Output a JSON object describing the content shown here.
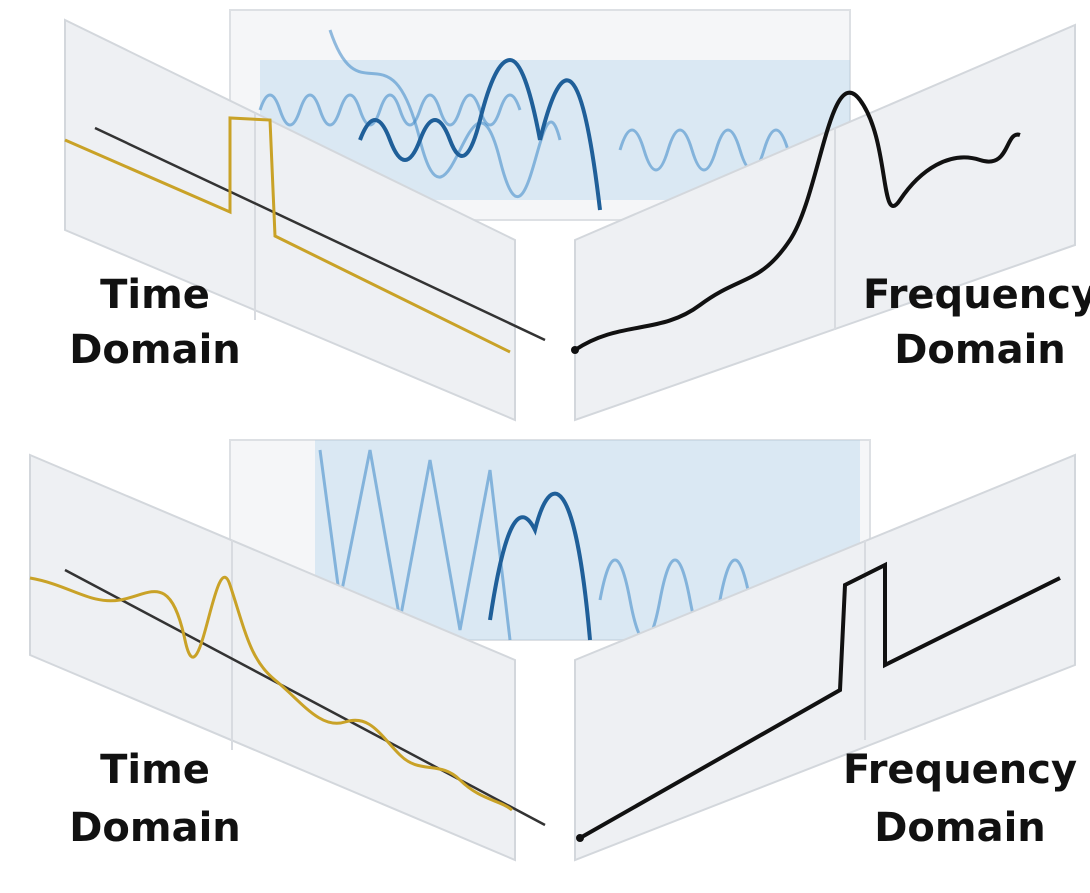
{
  "panels": [
    {
      "time_label": [
        "Time",
        "Domain"
      ],
      "frequency_label": [
        "Frequency",
        "Domain"
      ]
    },
    {
      "time_label": [
        "Time",
        "Domain"
      ],
      "frequency_label": [
        "Frequency",
        "Domain"
      ]
    }
  ]
}
